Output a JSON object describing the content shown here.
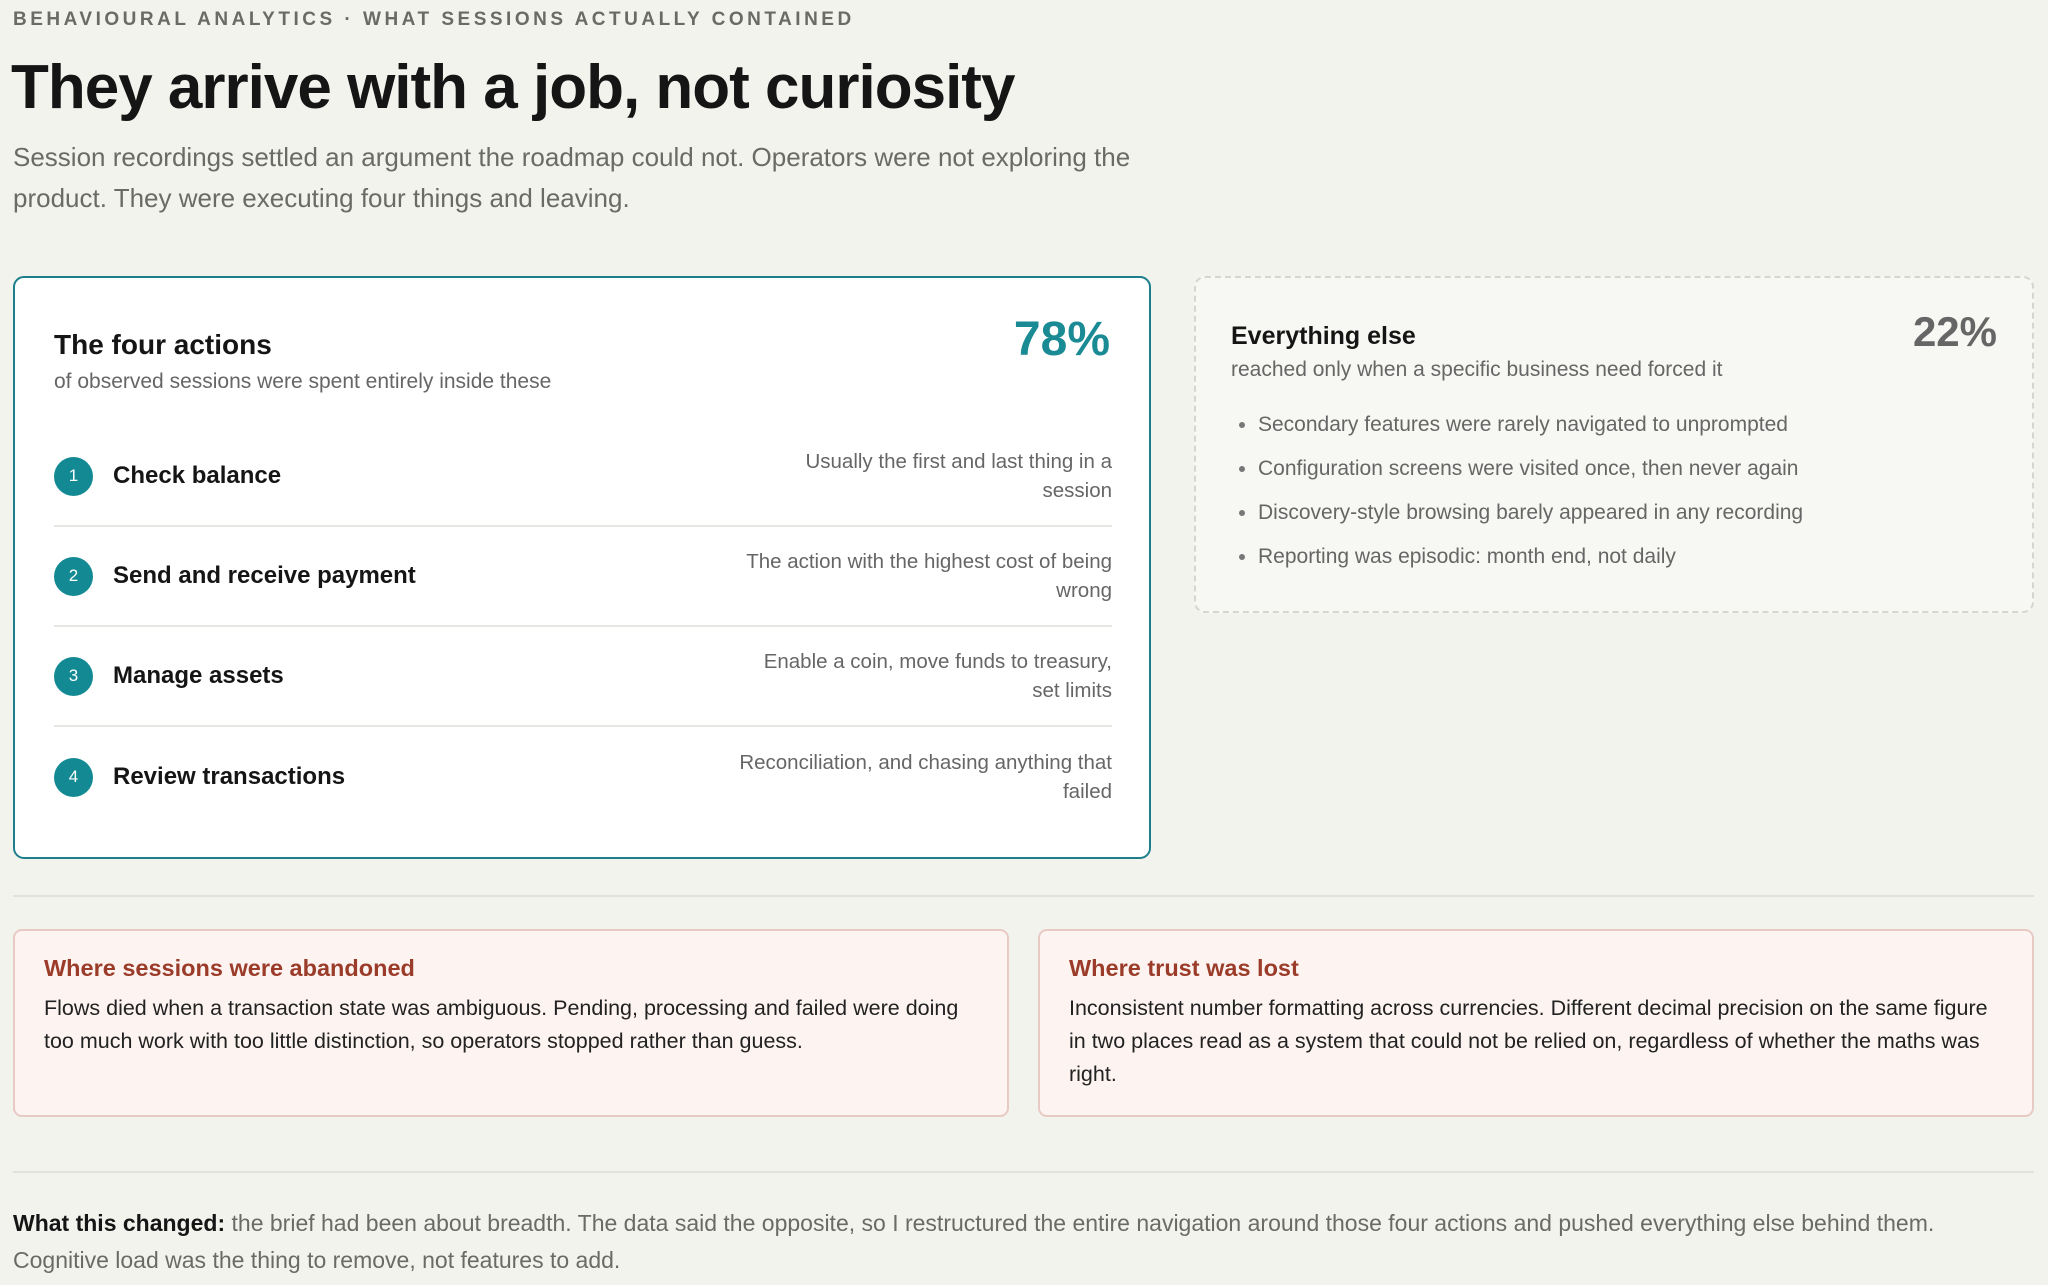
{
  "header": {
    "eyebrow": "BEHAVIOURAL ANALYTICS · WHAT SESSIONS ACTUALLY CONTAINED",
    "title": "They arrive with a job, not curiosity",
    "subtitle": "Session recordings settled an argument the roadmap could not. Operators were not exploring the product. They were executing four things and leaving."
  },
  "primary": {
    "title": "The four actions",
    "subtitle": "of observed sessions were spent entirely inside these",
    "stat": "78%",
    "actions": [
      {
        "number": "1",
        "label": "Check balance",
        "description": "Usually the first and last thing in a session"
      },
      {
        "number": "2",
        "label": "Send and receive payment",
        "description": "The action with the highest cost of being wrong"
      },
      {
        "number": "3",
        "label": "Manage assets",
        "description": "Enable a coin, move funds to treasury, set limits"
      },
      {
        "number": "4",
        "label": "Review transactions",
        "description": "Reconciliation, and chasing anything that failed"
      }
    ]
  },
  "secondary": {
    "title": "Everything else",
    "subtitle": "reached only when a specific business need forced it",
    "stat": "22%",
    "bullets": [
      "Secondary features were rarely navigated to unprompted",
      "Configuration screens were visited once, then never again",
      "Discovery-style browsing barely appeared in any recording",
      "Reporting was episodic: month end, not daily"
    ]
  },
  "findings": [
    {
      "title": "Where sessions were abandoned",
      "body": "Flows died when a transaction state was ambiguous. Pending, processing and failed were doing too much work with too little distinction, so operators stopped rather than guess."
    },
    {
      "title": "Where trust was lost",
      "body": "Inconsistent number formatting across currencies. Different decimal precision on the same figure in two places read as a system that could not be relied on, regardless of whether the maths was right."
    }
  ],
  "footer": {
    "lead": "What this changed:",
    "body": "the brief had been about breadth. The data said the opposite, so I restructured the entire navigation around those four actions and pushed everything else behind them. Cognitive load was the thing to remove, not features to add."
  }
}
